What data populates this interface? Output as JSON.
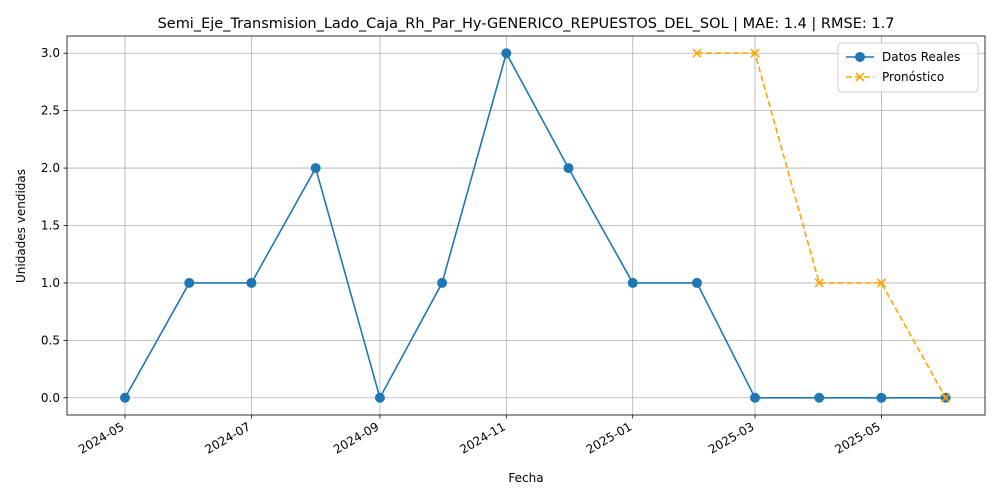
{
  "chart_data": {
    "type": "line",
    "title": "Semi_Eje_Transmision_Lado_Caja_Rh_Par_Hy-GENERICO_REPUESTOS_DEL_SOL | MAE: 1.4 | RMSE: 1.7",
    "xlabel": "Fecha",
    "ylabel": "Unidades vendidas",
    "x_tick_labels": [
      "2024-05",
      "2024-07",
      "2024-09",
      "2024-11",
      "2025-01",
      "2025-03",
      "2025-05"
    ],
    "y_tick_labels": [
      "0.0",
      "0.5",
      "1.0",
      "1.5",
      "2.0",
      "2.5",
      "3.0"
    ],
    "y_ticks": [
      0,
      0.5,
      1,
      1.5,
      2,
      2.5,
      3
    ],
    "ylim": [
      -0.15,
      3.15
    ],
    "xlim": [
      "2024-04-03",
      "2025-06-20"
    ],
    "grid": true,
    "legend_position": "top-right",
    "series": [
      {
        "name": "Datos Reales",
        "color": "#1f77b4",
        "line_style": "solid",
        "marker": "circle",
        "x": [
          "2024-05-01",
          "2024-06-01",
          "2024-07-01",
          "2024-08-01",
          "2024-09-01",
          "2024-10-01",
          "2024-11-01",
          "2024-12-01",
          "2025-01-01",
          "2025-02-01",
          "2025-03-01",
          "2025-04-01",
          "2025-05-01",
          "2025-06-01"
        ],
        "y": [
          0,
          1,
          1,
          2,
          0,
          1,
          3,
          2,
          1,
          1,
          0,
          0,
          0,
          0
        ]
      },
      {
        "name": "Pronóstico",
        "color": "#ffa500",
        "line_style": "dashed",
        "marker": "x",
        "x": [
          "2025-02-01",
          "2025-03-01",
          "2025-04-01",
          "2025-05-01",
          "2025-06-01"
        ],
        "y": [
          3,
          3,
          1,
          1,
          0
        ]
      }
    ]
  }
}
